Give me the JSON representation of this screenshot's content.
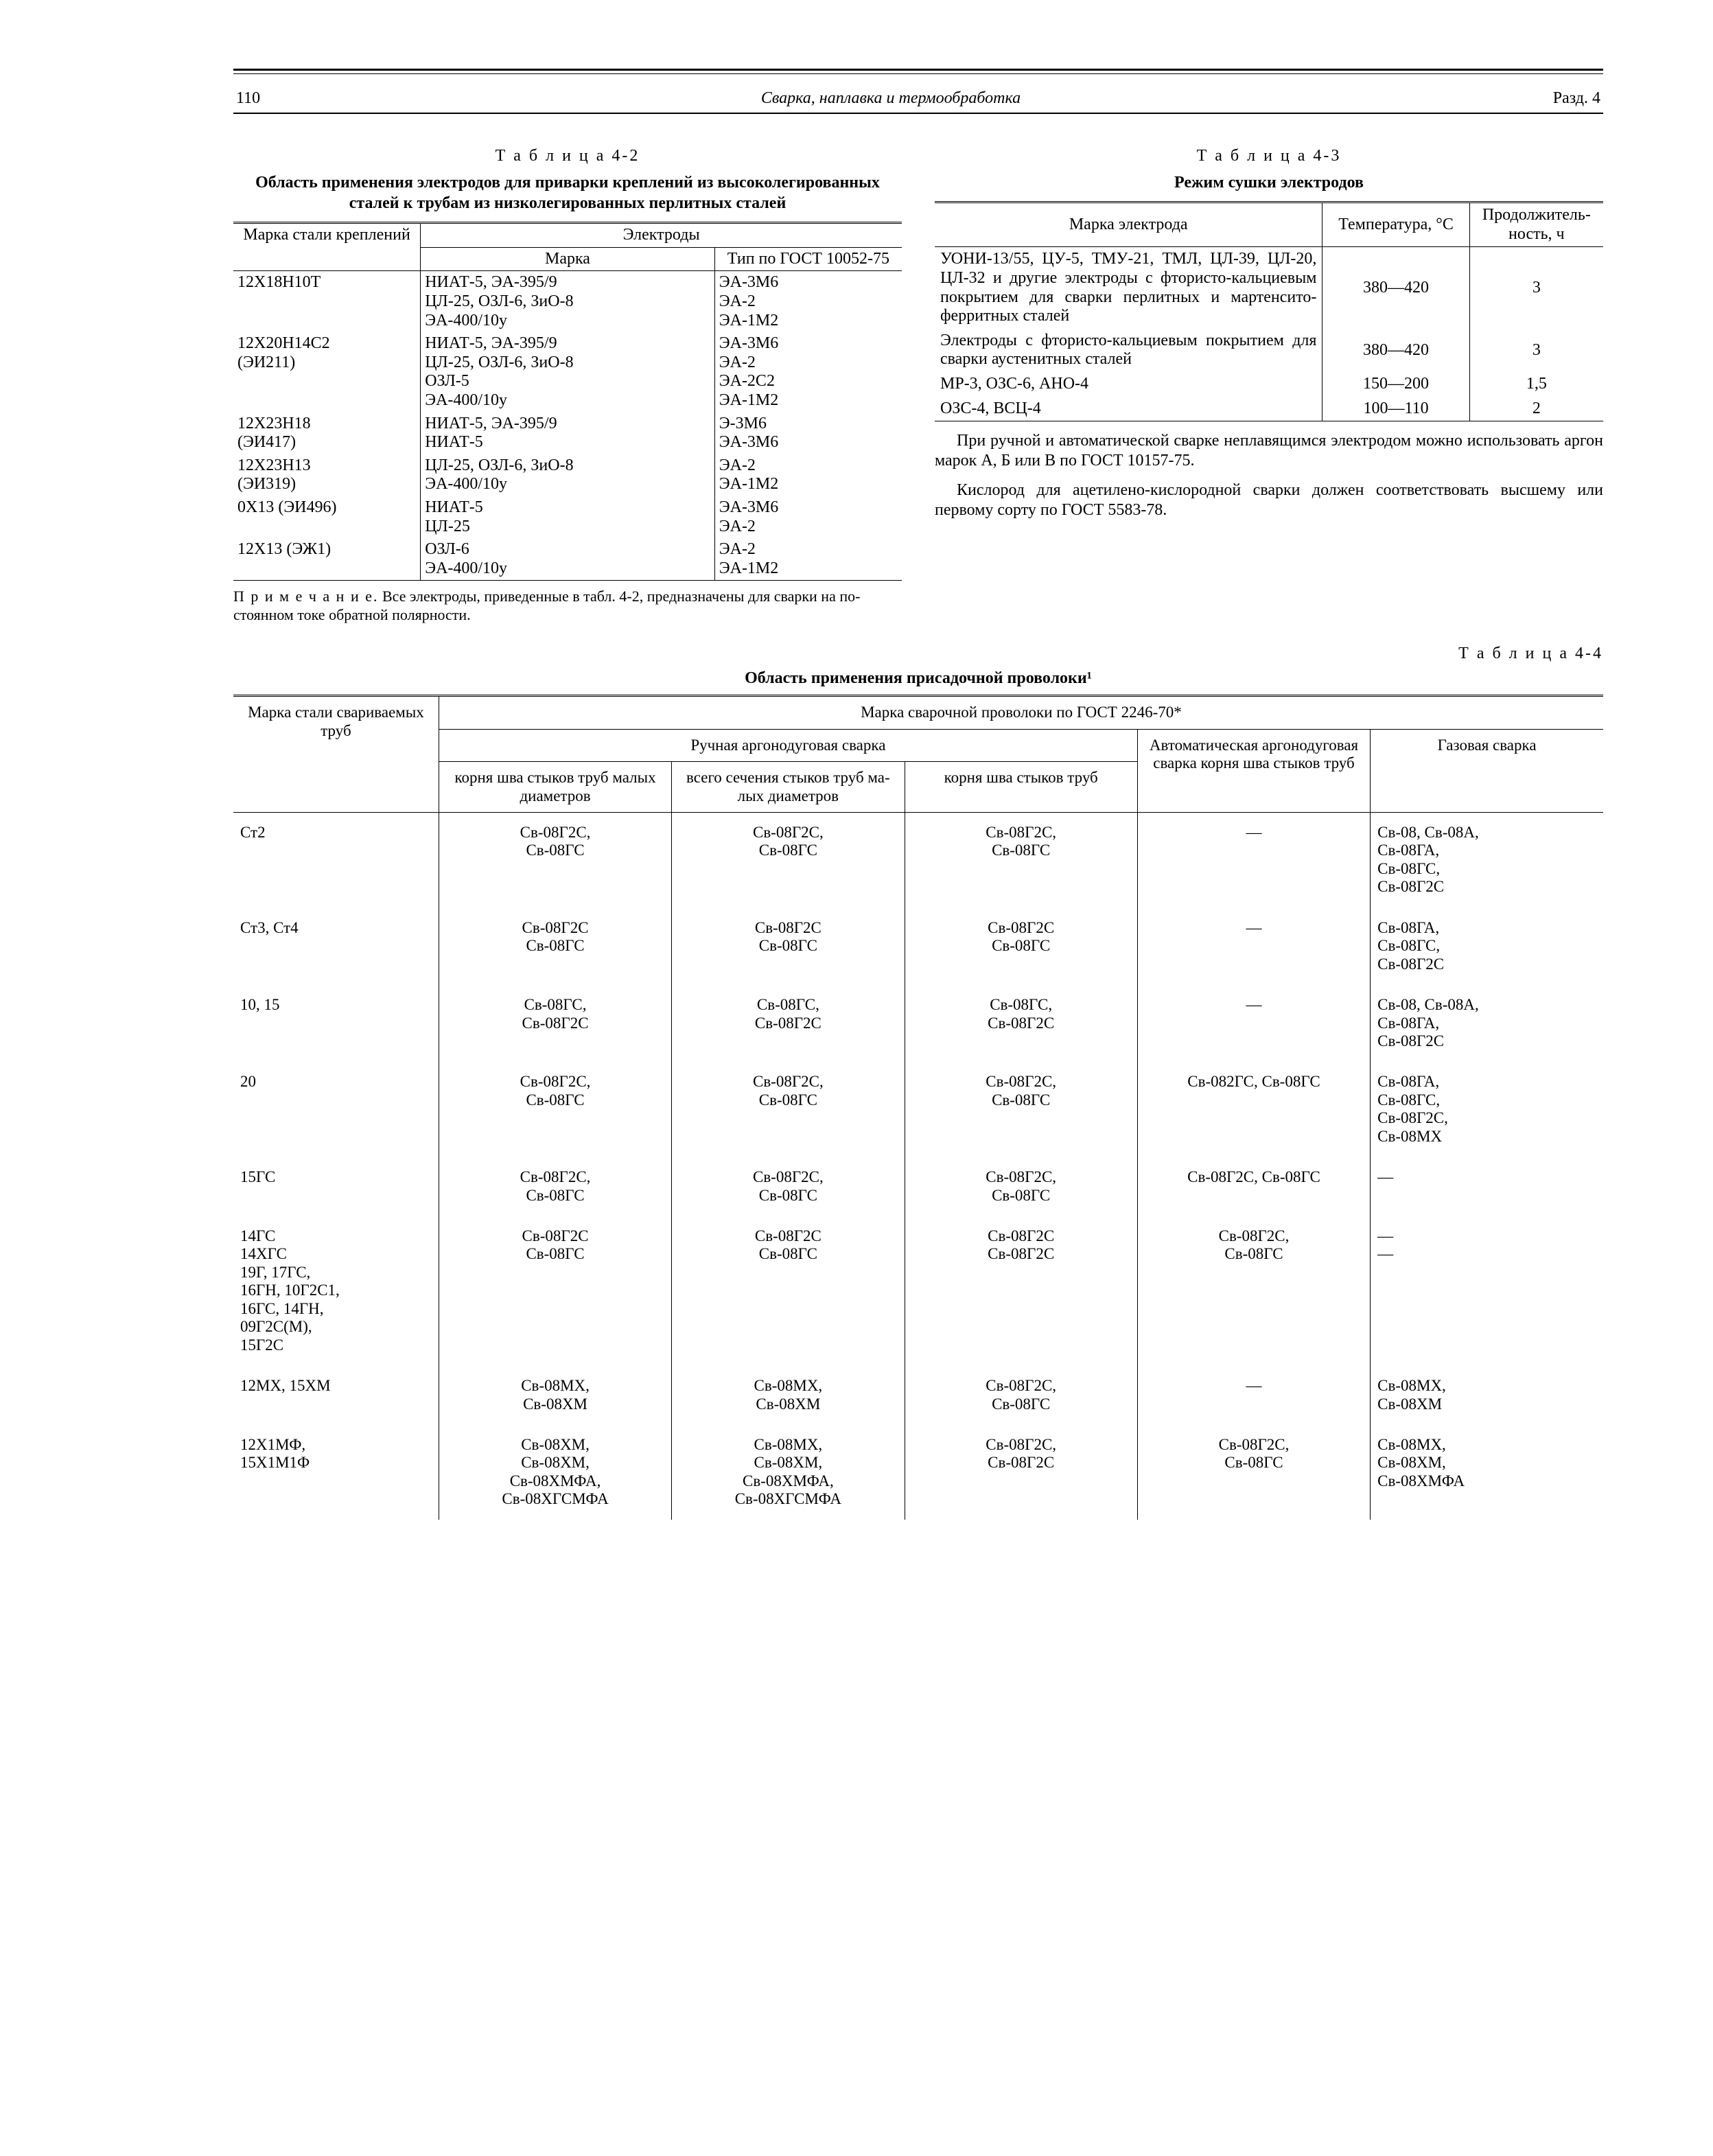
{
  "header": {
    "page": "110",
    "title": "Сварка, наплавка и термообработка",
    "section": "Разд. 4"
  },
  "table42": {
    "label": "Т а б л и ц а  4-2",
    "caption": "Область применения электродов для приварки креплений из высоколегированных сталей к трубам из низколегированных перлитных сталей",
    "head": {
      "col1": "Марка стали креп­лений",
      "group": "Электроды",
      "col2": "Марка",
      "col3": "Тип по ГОСТ 10052-75"
    },
    "rows": [
      {
        "c1": "12Х18Н10Т",
        "c2": "НИАТ-5, ЭА-395/9\nЦЛ-25, ОЗЛ-6, ЗиО-8\nЭА-400/10у",
        "c3": "ЭА-3М6\nЭА-2\nЭА-1М2"
      },
      {
        "c1": "12Х20Н14С2\n(ЭИ211)",
        "c2": "НИАТ-5, ЭА-395/9\nЦЛ-25, ОЗЛ-6, ЗиО-8\nОЗЛ-5\nЭА-400/10у",
        "c3": "ЭА-3М6\nЭА-2\nЭА-2С2\nЭА-1М2"
      },
      {
        "c1": "12Х23Н18\n(ЭИ417)",
        "c2": "НИАТ-5, ЭА-395/9\nНИАТ-5",
        "c3": "Э-3М6\nЭА-3М6"
      },
      {
        "c1": "12Х23Н13\n(ЭИ319)",
        "c2": "ЦЛ-25, ОЗЛ-6, ЗиО-8\nЭА-400/10у",
        "c3": "ЭА-2\nЭА-1М2"
      },
      {
        "c1": "0Х13 (ЭИ496)",
        "c2": "НИАТ-5\nЦЛ-25",
        "c3": "ЭА-3М6\nЭА-2"
      },
      {
        "c1": "12Х13 (ЭЖ1)",
        "c2": "ОЗЛ-6\nЭА-400/10у",
        "c3": "ЭА-2\nЭА-1М2"
      }
    ],
    "footnote_lead": "П р и м е ч а н и е.",
    "footnote": " Все электроды, приведен­ные в табл. 4-2, предназначены для сварки на по­стоянном токе обратной полярности."
  },
  "table43": {
    "label": "Т а б л и ц а  4-3",
    "caption": "Режим сушки электродов",
    "head": {
      "c1": "Марка электрода",
      "c2": "Темпера­тура, °С",
      "c3": "Продол­житель­ность, ч"
    },
    "rows": [
      {
        "c1": "УОНИ-13/55, ЦУ-5, ТМУ-21, ТМЛ, ЦЛ-39, ЦЛ-20, ЦЛ-32 и другие электро­ды с фтористо-кальцие­вым покрытием для свар­ки перлитных и мартенси­то-ферритных сталей",
        "c2": "380—420",
        "c3": "3"
      },
      {
        "c1": "Электроды с фтористо-кальциевым покрытием для сварки аустенитных сталей",
        "c2": "380—420",
        "c3": "3"
      },
      {
        "c1": "МР-3, ОЗС-6, АНО-4",
        "c2": "150—200",
        "c3": "1,5"
      },
      {
        "c1": "ОЗС-4, ВСЦ-4",
        "c2": "100—110",
        "c3": "2"
      }
    ]
  },
  "para1": "При ручной и автоматической сварке неплавящимся электродом можно исполь­зовать аргон марок А, Б или В по ГОСТ 10157-75.",
  "para2": "Кислород для ацетилено-кислородной сварки должен соответствовать высшему или первому сорту по ГОСТ 5583-78.",
  "table44": {
    "label": "Т а б л и ц а  4-4",
    "caption": "Область применения присадочной проволоки¹",
    "head": {
      "steel": "Марка стали свариваемых труб",
      "group": "Марка сварочной проволоки по ГОСТ 2246-70*",
      "manual": "Ручная аргонодуговая сварка",
      "m1": "корня шва стыков труб малых диа­метров",
      "m2": "всего сечения стыков труб ма­лых диаметров",
      "m3": "корня шва стыков труб",
      "auto": "Автоматическая аргонодуговая сварка корня шва стыков труб",
      "gas": "Газовая сварка"
    },
    "rows": [
      {
        "s": "Ст2",
        "m1": "Св-08Г2С,\nСв-08ГС",
        "m2": "Св-08Г2С,\nСв-08ГС",
        "m3": "Св-08Г2С,\nСв-08ГС",
        "a": "—",
        "g": "Св-08, Св-08А,\nСв-08ГА,\nСв-08ГС,\nСв-08Г2С"
      },
      {
        "s": "Ст3, Ст4",
        "m1": "Св-08Г2С\nСв-08ГС",
        "m2": "Св-08Г2С\nСв-08ГС",
        "m3": "Св-08Г2С\nСв-08ГС",
        "a": "—",
        "g": "Св-08ГА,\nСв-08ГС,\nСв-08Г2С"
      },
      {
        "s": "10, 15",
        "m1": "Св-08ГС,\nСв-08Г2С",
        "m2": "Св-08ГС,\nСв-08Г2С",
        "m3": "Св-08ГС,\nСв-08Г2С",
        "a": "—",
        "g": "Св-08, Св-08А,\nСв-08ГА,\nСв-08Г2С"
      },
      {
        "s": "20",
        "m1": "Св-08Г2С,\nСв-08ГС",
        "m2": "Св-08Г2С,\nСв-08ГС",
        "m3": "Св-08Г2С,\nСв-08ГС",
        "a": "Св-082ГС, Св-08ГС",
        "g": "Св-08ГА,\nСв-08ГС,\nСв-08Г2С,\nСв-08МХ"
      },
      {
        "s": "15ГС",
        "m1": "Св-08Г2С,\nСв-08ГС",
        "m2": "Св-08Г2С,\nСв-08ГС",
        "m3": "Св-08Г2С,\nСв-08ГС",
        "a": "Св-08Г2С, Св-08ГС",
        "g": "—"
      },
      {
        "s": "14ГС\n14ХГС\n19Г, 17ГС,\n16ГН, 10Г2С1,\n16ГС, 14ГН,\n09Г2С(М),\n15Г2С",
        "m1": "Св-08Г2С\nСв-08ГС",
        "m2": "Св-08Г2С\nСв-08ГС",
        "m3": "Св-08Г2С\nСв-08Г2С",
        "a": "Св-08Г2С,\nСв-08ГС",
        "g": "—\n—"
      },
      {
        "s": "12МХ, 15ХМ",
        "m1": "Св-08МХ,\nСв-08ХМ",
        "m2": "Св-08МХ,\nСв-08ХМ",
        "m3": "Св-08Г2С,\nСв-08ГС",
        "a": "—",
        "g": "Св-08МХ,\nСв-08ХМ"
      },
      {
        "s": "12Х1МФ,\n15Х1М1Ф",
        "m1": "Св-08ХМ,\nСв-08ХМ,\nСв-08ХМФА,\nСв-08ХГСМФА",
        "m2": "Св-08МХ,\nСв-08ХМ,\nСв-08ХМФА,\nСв-08ХГСМФА",
        "m3": "Св-08Г2С,\nСв-08Г2С",
        "a": "Св-08Г2С,\nСв-08ГС",
        "g": "Св-08МХ,\nСв-08ХМ,\nСв-08ХМФА"
      }
    ]
  }
}
